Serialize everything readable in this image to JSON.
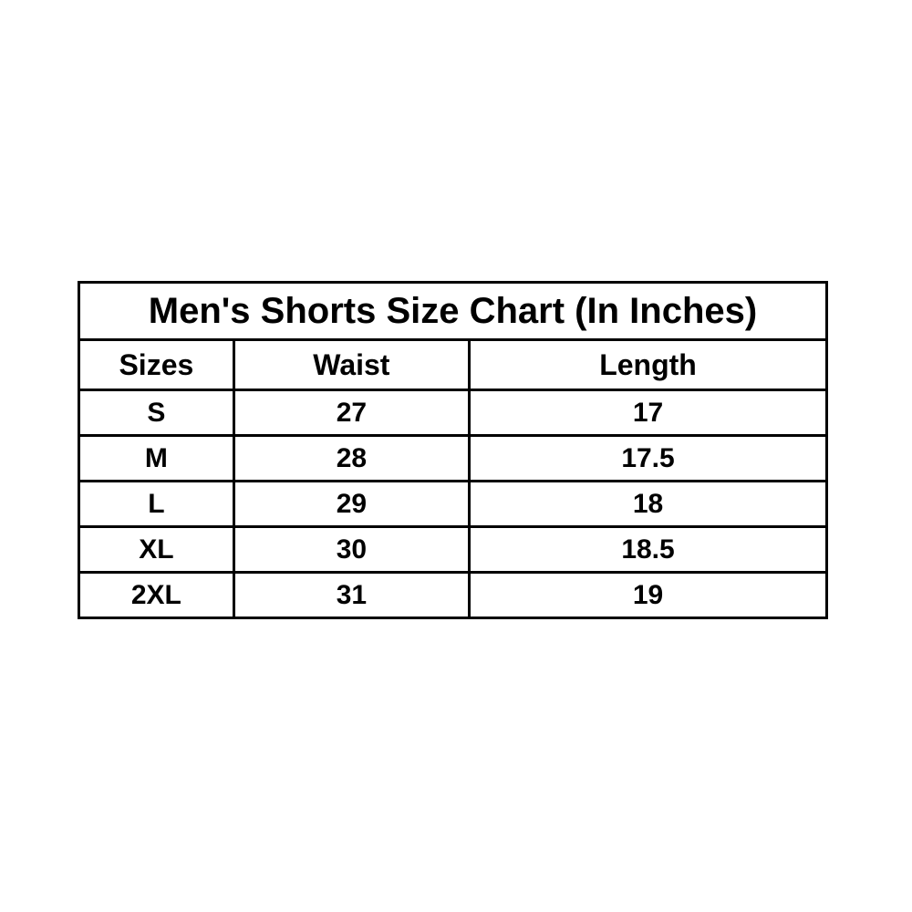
{
  "page": {
    "background_color": "#ffffff",
    "border_color": "#000000",
    "text_color": "#000000"
  },
  "chart_data": {
    "type": "table",
    "title": "Men's Shorts Size Chart (In Inches)",
    "units": "inches",
    "columns": [
      "Sizes",
      "Waist",
      "Length"
    ],
    "rows": [
      [
        "S",
        "27",
        "17"
      ],
      [
        "M",
        "28",
        "17.5"
      ],
      [
        "L",
        "29",
        "18"
      ],
      [
        "XL",
        "30",
        "18.5"
      ],
      [
        "2XL",
        "31",
        "19"
      ]
    ]
  }
}
